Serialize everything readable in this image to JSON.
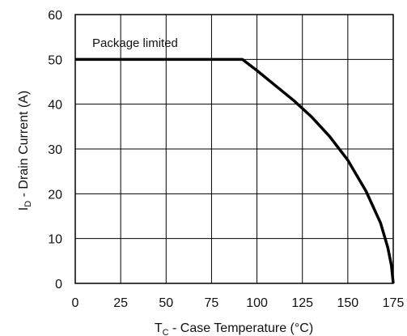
{
  "chart_data": {
    "type": "line",
    "xlabel": {
      "symbol": "T",
      "subscript": "C",
      "text": " - Case Temperature (°C)"
    },
    "ylabel": {
      "symbol": "I",
      "subscript": "D",
      "text": " - Drain Current (A)"
    },
    "xlim": [
      0,
      175
    ],
    "ylim": [
      0,
      60
    ],
    "x_ticks": [
      0,
      25,
      50,
      75,
      100,
      125,
      150,
      175
    ],
    "y_ticks": [
      0,
      10,
      20,
      30,
      40,
      50,
      60
    ],
    "grid": true,
    "legend": "none",
    "annotations": [
      {
        "text": "Package limited"
      }
    ],
    "series": [
      {
        "x": [
          0,
          92,
          100,
          110,
          120,
          130,
          140,
          150,
          160,
          168,
          172,
          174,
          175
        ],
        "y": [
          50,
          50,
          47.5,
          44.2,
          40.9,
          37.2,
          32.8,
          27.5,
          20.6,
          13.5,
          8.0,
          4.0,
          0
        ],
        "color": "#000000"
      }
    ],
    "colors": {
      "line": "#000000",
      "grid": "#000000",
      "frame": "#000000",
      "background": "#ffffff"
    }
  }
}
